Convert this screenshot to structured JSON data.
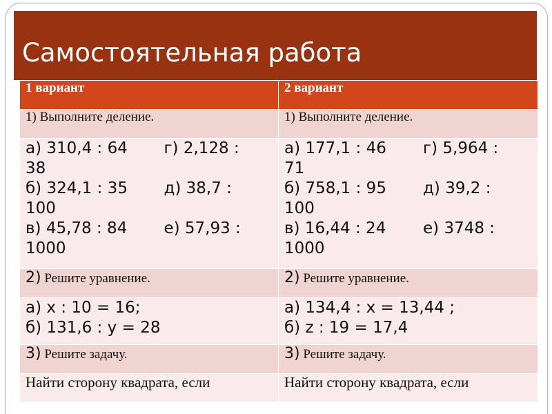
{
  "slide": {
    "title": "Самостоятельная работа"
  },
  "table": {
    "headers": [
      "1 вариант",
      "2 вариант"
    ],
    "task1": {
      "label_v1": "1) Выполните деление.",
      "label_v2": "1) Выполните деление.",
      "v1": [
        {
          "left": "а) 310,4 : 64",
          "right": "г) 2,128 :",
          "wrap": "38"
        },
        {
          "left": "б) 324,1 : 35",
          "right": "д) 38,7 :",
          "wrap": "100"
        },
        {
          "left": "в) 45,78 : 84",
          "right": "е) 57,93 :",
          "wrap": "1000"
        }
      ],
      "v2": [
        {
          "left": "а) 177,1 : 46",
          "right": "г) 5,964 :",
          "wrap": "71"
        },
        {
          "left": "б) 758,1 : 95",
          "right": "д) 39,2 :",
          "wrap": "100"
        },
        {
          "left": "в) 16,44 : 24",
          "right": "е) 3748 :",
          "wrap": "1000"
        }
      ]
    },
    "task2": {
      "num_v1": "2)",
      "text_v1": "Решите уравнение.",
      "num_v2": "2)",
      "text_v2": "Решите уравнение.",
      "v1": [
        "а) х : 10 = 16;",
        "б) 131,6 : у = 28"
      ],
      "v2": [
        "а) 134,4 : х = 13,44 ;",
        "б) z : 19 = 17,4"
      ]
    },
    "task3": {
      "num_v1": "3)",
      "text_v1": "Решите задачу.",
      "num_v2": "3)",
      "text_v2": "Решите задачу.",
      "v1": "Найти сторону квадрата, если",
      "v2": "Найти сторону квадрата, если"
    }
  }
}
